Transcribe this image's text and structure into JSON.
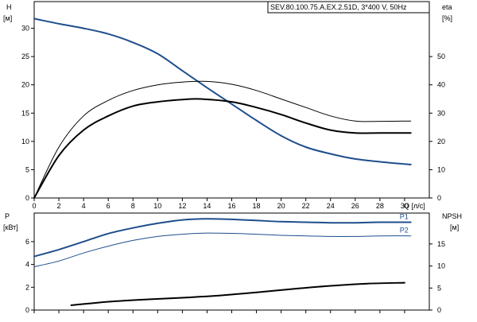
{
  "chart_data": [
    {
      "type": "line",
      "title": "SEV.80.100.75.A.EX.2.51D, 3*400 V, 50Hz",
      "xlabel": "Q [л/с]",
      "ylabel_left_name": "H",
      "ylabel_left_unit": "[м]",
      "ylabel_right_name": "eta",
      "ylabel_right_unit": "[%]",
      "xlim": [
        0,
        32
      ],
      "ylim_left": [
        0,
        35
      ],
      "ylim_right": [
        0,
        70
      ],
      "x_ticks": [
        "0",
        "2",
        "4",
        "6",
        "8",
        "10",
        "12",
        "14",
        "16",
        "18",
        "20",
        "22",
        "24",
        "26",
        "28",
        "30"
      ],
      "y_left_ticks": [
        "0",
        "5",
        "10",
        "15",
        "20",
        "25",
        "30"
      ],
      "y_right_ticks": [
        "0",
        "10",
        "20",
        "30",
        "40",
        "50"
      ],
      "grid": false,
      "series": [
        {
          "axis": "left",
          "color": "#1f4e8c",
          "x": [
            0,
            2,
            4,
            6,
            8,
            10,
            12,
            14,
            16,
            18,
            20,
            22,
            24,
            26,
            28,
            30.5
          ],
          "values": [
            31.7,
            30.8,
            30.0,
            29.0,
            27.5,
            25.5,
            22.5,
            19.5,
            16.6,
            13.7,
            11.0,
            9.0,
            7.8,
            6.9,
            6.4,
            5.9
          ]
        },
        {
          "axis": "right",
          "color": "#000000",
          "x": [
            0,
            2,
            4,
            6,
            8,
            10,
            12,
            13.5,
            16,
            18,
            20,
            22,
            24,
            26,
            28,
            30.5
          ],
          "values": [
            0,
            15,
            24,
            29,
            32.5,
            34,
            34.8,
            35,
            34,
            32,
            29.5,
            26.5,
            24,
            23,
            23,
            23
          ]
        },
        {
          "axis": "right",
          "color": "#000000",
          "x": [
            0,
            2,
            4,
            6,
            8,
            10,
            12,
            14,
            16,
            18,
            20,
            22,
            24,
            26,
            28,
            30.5
          ],
          "values": [
            0,
            18,
            29,
            34.5,
            38,
            40,
            41,
            41.2,
            40.2,
            38,
            35,
            32,
            29,
            27.2,
            27.1,
            27.2
          ]
        }
      ]
    },
    {
      "type": "line",
      "xlabel": "",
      "ylabel_left_name": "P",
      "ylabel_left_unit": "[кВт]",
      "ylabel_right_name": "NPSH",
      "ylabel_right_unit": "[м]",
      "xlim": [
        0,
        32
      ],
      "ylim_left": [
        0,
        8.5
      ],
      "ylim_right": [
        0,
        22
      ],
      "y_left_ticks": [
        "0",
        "2",
        "4",
        "6"
      ],
      "y_right_ticks": [
        "0",
        "5",
        "10",
        "15"
      ],
      "grid": false,
      "series": [
        {
          "name": "P1",
          "axis": "left",
          "color": "#1f4e8c",
          "x": [
            0,
            2,
            4,
            6,
            8,
            10,
            12,
            14,
            16,
            18,
            20,
            22,
            24,
            26,
            28,
            30.5
          ],
          "values": [
            4.7,
            5.3,
            6.0,
            6.7,
            7.2,
            7.6,
            7.9,
            8.0,
            7.95,
            7.85,
            7.75,
            7.7,
            7.65,
            7.65,
            7.7,
            7.7
          ]
        },
        {
          "name": "P2",
          "axis": "left",
          "color": "#1f4e8c",
          "x": [
            0,
            2,
            4,
            6,
            8,
            10,
            12,
            14,
            16,
            18,
            20,
            22,
            24,
            26,
            28,
            30.5
          ],
          "values": [
            3.8,
            4.3,
            5.0,
            5.6,
            6.1,
            6.45,
            6.65,
            6.75,
            6.72,
            6.65,
            6.55,
            6.5,
            6.45,
            6.45,
            6.5,
            6.5
          ]
        },
        {
          "axis": "right",
          "color": "#000000",
          "x": [
            3,
            6,
            9,
            12,
            15,
            18,
            21,
            24,
            27,
            30
          ],
          "values": [
            1.1,
            1.9,
            2.4,
            2.8,
            3.3,
            4.0,
            4.8,
            5.5,
            6.0,
            6.2
          ]
        }
      ]
    }
  ]
}
